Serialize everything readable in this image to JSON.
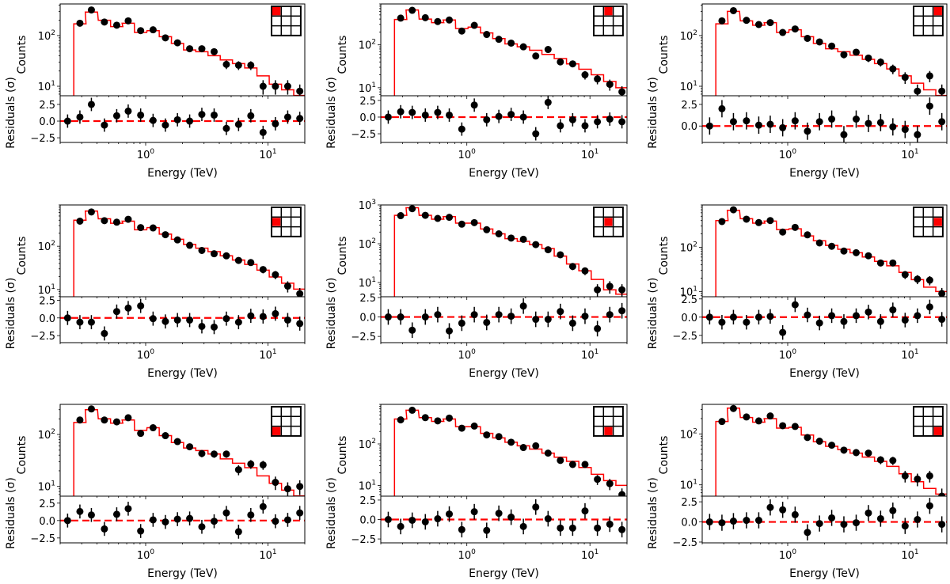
{
  "figure": {
    "description": "3x3 grid of spectral fit panels: counts vs energy with model and residuals",
    "colors": {
      "model": "#ff0000",
      "data": "#000000",
      "zero_line": "#ff0000",
      "inset_highlight": "#ff0000",
      "axes": "#000000"
    }
  },
  "chart_data": [
    {
      "type": "scatter",
      "panel": "row1-col1",
      "region_highlight": [
        0,
        0
      ],
      "title": "",
      "xlabel": "Energy (TeV)",
      "ylabel_top": "Counts",
      "ylabel_bottom": "Residuals (σ)",
      "xscale": "log",
      "xlim": [
        0.2,
        20
      ],
      "xticks": [
        "10^0",
        "10^1"
      ],
      "top": {
        "yscale": "log",
        "ylim": [
          6.5,
          420
        ],
        "yticks": [
          "10^1",
          "10^2"
        ],
        "energy": [
          0.23,
          0.29,
          0.36,
          0.46,
          0.58,
          0.72,
          0.91,
          1.15,
          1.45,
          1.82,
          2.29,
          2.88,
          3.63,
          4.57,
          5.75,
          7.24,
          9.12,
          11.5,
          14.5,
          18.2
        ],
        "counts": [
          null,
          175,
          320,
          185,
          160,
          195,
          125,
          130,
          90,
          72,
          55,
          55,
          48,
          27,
          26,
          26,
          10,
          10,
          10,
          8
        ],
        "model": [
          null,
          170,
          290,
          200,
          150,
          175,
          115,
          125,
          95,
          70,
          52,
          48,
          40,
          33,
          28,
          23,
          16,
          11,
          8.5,
          6.6
        ]
      },
      "bottom": {
        "ylim": [
          -3.2,
          3.8
        ],
        "yticks": [
          "−2.5",
          "0.0",
          "2.5"
        ],
        "residuals": [
          0,
          0.6,
          2.5,
          -0.6,
          0.8,
          1.5,
          0.9,
          0.1,
          -0.6,
          0.2,
          0.0,
          1.0,
          0.9,
          -1.1,
          -0.5,
          0.8,
          -1.7,
          -0.4,
          0.6,
          0.4
        ]
      }
    },
    {
      "type": "scatter",
      "panel": "row1-col2",
      "region_highlight": [
        0,
        1
      ],
      "xlabel": "Energy (TeV)",
      "ylabel_top": "Counts",
      "ylabel_bottom": "Residuals (σ)",
      "xscale": "log",
      "xlim": [
        0.2,
        20
      ],
      "xticks": [
        "10^0",
        "10^1"
      ],
      "top": {
        "yscale": "log",
        "ylim": [
          6.5,
          900
        ],
        "yticks": [
          "10^1",
          "10^2"
        ],
        "energy": [
          0.23,
          0.29,
          0.36,
          0.46,
          0.58,
          0.72,
          0.91,
          1.15,
          1.45,
          1.82,
          2.29,
          2.88,
          3.63,
          4.57,
          5.75,
          7.24,
          9.12,
          11.5,
          14.5,
          18.2
        ],
        "counts": [
          null,
          420,
          640,
          430,
          350,
          380,
          210,
          285,
          175,
          135,
          110,
          90,
          55,
          78,
          40,
          36,
          20,
          16,
          12,
          8
        ],
        "model": [
          null,
          390,
          650,
          400,
          330,
          380,
          240,
          260,
          190,
          140,
          105,
          90,
          75,
          60,
          48,
          36,
          27,
          20,
          14,
          10
        ]
      },
      "bottom": {
        "ylim": [
          -3.8,
          3.2
        ],
        "yticks": [
          "−2.5",
          "0.0",
          "2.5"
        ],
        "residuals": [
          0,
          0.8,
          0.7,
          0.3,
          0.7,
          0.3,
          -1.8,
          1.8,
          -0.4,
          0.1,
          0.4,
          0.0,
          -2.5,
          2.2,
          -1.3,
          -0.4,
          -1.3,
          -0.7,
          -0.3,
          -0.7
        ]
      }
    },
    {
      "type": "scatter",
      "panel": "row1-col3",
      "region_highlight": [
        0,
        2
      ],
      "xlabel": "Energy (TeV)",
      "ylabel_top": "Counts",
      "ylabel_bottom": "Residuals (σ)",
      "xscale": "log",
      "xlim": [
        0.2,
        20
      ],
      "xticks": [
        "10^0",
        "10^1"
      ],
      "top": {
        "yscale": "log",
        "ylim": [
          6.5,
          420
        ],
        "yticks": [
          "10^1",
          "10^2"
        ],
        "energy": [
          0.23,
          0.29,
          0.36,
          0.46,
          0.58,
          0.72,
          0.91,
          1.15,
          1.45,
          1.82,
          2.29,
          2.88,
          3.63,
          4.57,
          5.75,
          7.24,
          9.12,
          11.5,
          14.5,
          18.2
        ],
        "counts": [
          null,
          195,
          310,
          200,
          165,
          180,
          115,
          135,
          88,
          75,
          62,
          42,
          47,
          36,
          30,
          22,
          15,
          8,
          16,
          8
        ],
        "model": [
          null,
          170,
          300,
          195,
          160,
          180,
          115,
          130,
          95,
          70,
          55,
          48,
          41,
          34,
          28,
          22,
          16,
          11.5,
          8.5,
          6.6
        ]
      },
      "bottom": {
        "ylim": [
          -1.9,
          3.5
        ],
        "yticks": [
          "0.0",
          "2.5"
        ],
        "residuals": [
          0,
          2.0,
          0.5,
          0.6,
          0.1,
          0.2,
          -0.2,
          0.6,
          -0.6,
          0.5,
          0.8,
          -1.0,
          0.8,
          0.3,
          0.4,
          -0.1,
          -0.4,
          -1.0,
          2.3,
          0.5
        ]
      }
    },
    {
      "type": "scatter",
      "panel": "row2-col1",
      "region_highlight": [
        1,
        0
      ],
      "xlabel": "Energy (TeV)",
      "ylabel_top": "Counts",
      "ylabel_bottom": "Residuals (σ)",
      "xscale": "log",
      "xlim": [
        0.2,
        20
      ],
      "xticks": [
        "10^0",
        "10^1"
      ],
      "top": {
        "yscale": "log",
        "ylim": [
          6.8,
          900
        ],
        "yticks": [
          "10^1",
          "10^2"
        ],
        "energy": [
          0.23,
          0.29,
          0.36,
          0.46,
          0.58,
          0.72,
          0.91,
          1.15,
          1.45,
          1.82,
          2.29,
          2.88,
          3.63,
          4.57,
          5.75,
          7.24,
          9.12,
          11.5,
          14.5,
          18.2
        ],
        "counts": [
          null,
          380,
          620,
          390,
          360,
          420,
          270,
          265,
          185,
          140,
          105,
          80,
          67,
          60,
          47,
          42,
          29,
          22,
          12,
          8
        ],
        "model": [
          null,
          400,
          650,
          430,
          340,
          380,
          240,
          270,
          190,
          145,
          110,
          90,
          75,
          60,
          48,
          38,
          28,
          19.5,
          14,
          10.2
        ]
      },
      "bottom": {
        "ylim": [
          -3.5,
          3.0
        ],
        "yticks": [
          "−2.5",
          "0.0",
          "2.5"
        ],
        "residuals": [
          0,
          -0.6,
          -0.6,
          -2.2,
          0.9,
          1.4,
          1.7,
          -0.1,
          -0.5,
          -0.3,
          -0.3,
          -1.2,
          -1.3,
          -0.1,
          -0.6,
          0.3,
          0.2,
          0.6,
          -0.3,
          -0.8
        ]
      }
    },
    {
      "type": "scatter",
      "panel": "row2-col2",
      "region_highlight": [
        1,
        1
      ],
      "xlabel": "Energy (TeV)",
      "ylabel_top": "Counts",
      "ylabel_bottom": "Residuals (σ)",
      "xscale": "log",
      "xlim": [
        0.2,
        20
      ],
      "xticks": [
        "10^0",
        "10^1"
      ],
      "top": {
        "yscale": "log",
        "ylim": [
          4.3,
          1000
        ],
        "yticks": [
          "10^1",
          "10^2",
          "10^3"
        ],
        "energy": [
          0.23,
          0.29,
          0.36,
          0.46,
          0.58,
          0.72,
          0.91,
          1.15,
          1.45,
          1.82,
          2.29,
          2.88,
          3.63,
          4.57,
          5.75,
          7.24,
          9.12,
          11.5,
          14.5,
          18.2
        ],
        "counts": [
          null,
          530,
          800,
          540,
          450,
          480,
          320,
          350,
          230,
          180,
          140,
          130,
          95,
          70,
          52,
          26,
          20,
          6.5,
          8,
          6.5
        ],
        "model": [
          null,
          540,
          850,
          540,
          430,
          500,
          340,
          340,
          240,
          180,
          135,
          115,
          95,
          75,
          48,
          30,
          20,
          12,
          6.5,
          5.0
        ]
      },
      "bottom": {
        "ylim": [
          -3.3,
          2.6
        ],
        "yticks": [
          "−2.5",
          "0.0",
          "2.5"
        ],
        "residuals": [
          0,
          0,
          -1.7,
          0,
          0.3,
          -1.8,
          -0.8,
          0.3,
          -0.7,
          0.3,
          0.1,
          1.4,
          -0.3,
          -0.3,
          0.7,
          -0.8,
          0.1,
          -1.5,
          0.3,
          0.8
        ]
      }
    },
    {
      "type": "scatter",
      "panel": "row2-col3",
      "region_highlight": [
        1,
        2
      ],
      "xlabel": "Energy (TeV)",
      "ylabel_top": "Counts",
      "ylabel_bottom": "Residuals (σ)",
      "xscale": "log",
      "xlim": [
        0.2,
        20
      ],
      "xticks": [
        "10^0",
        "10^1"
      ],
      "top": {
        "yscale": "log",
        "ylim": [
          7.6,
          900
        ],
        "yticks": [
          "10^1",
          "10^2"
        ],
        "energy": [
          0.23,
          0.29,
          0.36,
          0.46,
          0.58,
          0.72,
          0.91,
          1.15,
          1.45,
          1.82,
          2.29,
          2.88,
          3.63,
          4.57,
          5.75,
          7.24,
          9.12,
          11.5,
          14.5,
          18.2
        ],
        "counts": [
          null,
          380,
          700,
          430,
          360,
          400,
          220,
          280,
          190,
          125,
          105,
          82,
          75,
          64,
          44,
          44,
          24,
          19,
          18,
          9
        ],
        "model": [
          null,
          400,
          680,
          440,
          350,
          390,
          250,
          260,
          180,
          140,
          110,
          90,
          75,
          60,
          48,
          38,
          27,
          18.5,
          12.5,
          10
        ]
      },
      "bottom": {
        "ylim": [
          -3.5,
          2.8
        ],
        "yticks": [
          "−2.5",
          "0.0",
          "2.5"
        ],
        "residuals": [
          0,
          -0.7,
          0,
          -0.7,
          0,
          0.1,
          -2.1,
          1.7,
          0.3,
          -0.8,
          0.2,
          -0.6,
          0.2,
          0.7,
          -0.6,
          1.0,
          -0.4,
          0.2,
          1.4,
          -0.3
        ]
      }
    },
    {
      "type": "scatter",
      "panel": "row3-col1",
      "region_highlight": [
        2,
        0
      ],
      "xlabel": "Energy (TeV)",
      "ylabel_top": "Counts",
      "ylabel_bottom": "Residuals (σ)",
      "xscale": "log",
      "xlim": [
        0.2,
        20
      ],
      "xticks": [
        "10^0",
        "10^1"
      ],
      "top": {
        "yscale": "log",
        "ylim": [
          6.5,
          380
        ],
        "yticks": [
          "10^1",
          "10^2"
        ],
        "energy": [
          0.23,
          0.29,
          0.36,
          0.46,
          0.58,
          0.72,
          0.91,
          1.15,
          1.45,
          1.82,
          2.29,
          2.88,
          3.63,
          4.57,
          5.75,
          7.24,
          9.12,
          11.5,
          14.5,
          18.2
        ],
        "counts": [
          null,
          190,
          310,
          190,
          175,
          210,
          105,
          135,
          95,
          73,
          58,
          43,
          42,
          42,
          21,
          27,
          26,
          12,
          9,
          10
        ],
        "model": [
          null,
          170,
          300,
          200,
          165,
          190,
          120,
          135,
          95,
          70,
          55,
          49,
          42,
          34,
          28,
          23,
          16,
          11.5,
          8.5,
          6.6
        ]
      },
      "bottom": {
        "ylim": [
          -3.2,
          3.5
        ],
        "yticks": [
          "−2.5",
          "0.0",
          "2.5"
        ],
        "residuals": [
          0,
          1.3,
          0.8,
          -1.2,
          0.9,
          1.7,
          -1.5,
          0.1,
          -0.2,
          0.2,
          0.3,
          -0.9,
          -0.1,
          1.1,
          -1.6,
          0.8,
          2.0,
          -0.1,
          0.1,
          1.1
        ]
      }
    },
    {
      "type": "scatter",
      "panel": "row3-col2",
      "region_highlight": [
        2,
        1
      ],
      "xlabel": "Energy (TeV)",
      "ylabel_top": "Counts",
      "ylabel_bottom": "Residuals (σ)",
      "xscale": "log",
      "xlim": [
        0.2,
        20
      ],
      "xticks": [
        "10^0",
        "10^1"
      ],
      "top": {
        "yscale": "log",
        "ylim": [
          5.5,
          900
        ],
        "yticks": [
          "10^1",
          "10^2"
        ],
        "energy": [
          0.23,
          0.29,
          0.36,
          0.46,
          0.58,
          0.72,
          0.91,
          1.15,
          1.45,
          1.82,
          2.29,
          2.88,
          3.63,
          4.57,
          5.75,
          7.24,
          9.12,
          11.5,
          14.5,
          18.2
        ],
        "counts": [
          null,
          380,
          650,
          430,
          360,
          420,
          240,
          270,
          165,
          150,
          110,
          82,
          90,
          60,
          40,
          32,
          32,
          14,
          11,
          6
        ],
        "model": [
          null,
          400,
          650,
          430,
          350,
          400,
          260,
          260,
          180,
          140,
          110,
          90,
          75,
          60,
          48,
          38,
          27,
          18.5,
          13,
          10
        ]
      },
      "bottom": {
        "ylim": [
          -3.0,
          3.0
        ],
        "yticks": [
          "−2.5",
          "0.0",
          "2.5"
        ],
        "residuals": [
          0,
          -0.9,
          -0.1,
          -0.3,
          0.1,
          0.7,
          -1.3,
          1.0,
          -1.4,
          0.8,
          0.3,
          -0.9,
          1.6,
          0.1,
          -1.1,
          -1.1,
          1.1,
          -1.1,
          -0.6,
          -1.3
        ]
      }
    },
    {
      "type": "scatter",
      "panel": "row3-col3",
      "region_highlight": [
        2,
        2
      ],
      "xlabel": "Energy (TeV)",
      "ylabel_top": "Counts",
      "ylabel_bottom": "Residuals (σ)",
      "xscale": "log",
      "xlim": [
        0.2,
        20
      ],
      "xticks": [
        "10^0",
        "10^1"
      ],
      "top": {
        "yscale": "log",
        "ylim": [
          6.0,
          380
        ],
        "yticks": [
          "10^1",
          "10^2"
        ],
        "energy": [
          0.23,
          0.29,
          0.36,
          0.46,
          0.58,
          0.72,
          0.91,
          1.15,
          1.45,
          1.82,
          2.29,
          2.88,
          3.63,
          4.57,
          5.75,
          7.24,
          9.12,
          11.5,
          14.5,
          18.2
        ],
        "counts": [
          null,
          175,
          315,
          215,
          180,
          225,
          145,
          140,
          85,
          72,
          60,
          48,
          43,
          42,
          31,
          30,
          15,
          13,
          15,
          6
        ],
        "model": [
          null,
          175,
          320,
          210,
          170,
          200,
          130,
          135,
          95,
          70,
          57,
          49,
          42,
          35,
          29,
          23,
          16.5,
          11.5,
          8.5,
          6.6
        ]
      },
      "bottom": {
        "ylim": [
          -2.6,
          3.2
        ],
        "yticks": [
          "−2.5",
          "0.0",
          "2.5"
        ],
        "residuals": [
          0,
          -0.1,
          0.1,
          0.2,
          0.2,
          1.8,
          1.5,
          0.9,
          -1.3,
          -0.2,
          0.5,
          -0.3,
          -0.1,
          1.1,
          0.4,
          1.4,
          -0.5,
          0.3,
          2.0,
          -0.3
        ]
      }
    }
  ]
}
